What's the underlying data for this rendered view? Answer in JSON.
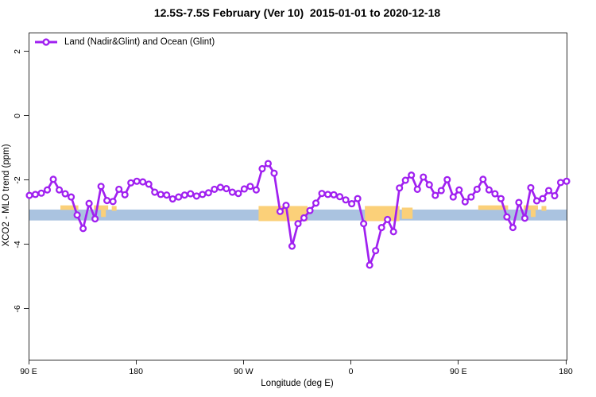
{
  "title": "12.5S-7.5S February (Ver 10)  2015-01-01 to 2020-12-18",
  "legend": {
    "label": "Land (Nadir&Glint) and Ocean (Glint)"
  },
  "colors": {
    "series_purple": "#A020F0",
    "ocean_band_blue": "#aac3e0",
    "land_patch_orange": "#fbd079",
    "axis_black": "#2b2b2b"
  },
  "chart_data": {
    "type": "line",
    "title": "12.5S-7.5S February (Ver 10)  2015-01-01 to 2020-12-18",
    "xlabel": "Longitude (deg E)",
    "ylabel": "XCO2 - MLO trend (ppm)",
    "x_axis_note": "longitude wraps: 90E to 180 to 90W to 0 to 90E to 180 (unwrapped 90..540)",
    "xlim": [
      90,
      540
    ],
    "ylim": [
      -7.56,
      2.59
    ],
    "grid": false,
    "legend_position": "top-left-inside",
    "x_ticks": [
      {
        "value": 90,
        "label": "90 E"
      },
      {
        "value": 180,
        "label": "180"
      },
      {
        "value": 270,
        "label": "90 W"
      },
      {
        "value": 360,
        "label": "0"
      },
      {
        "value": 450,
        "label": "90 E"
      },
      {
        "value": 540,
        "label": "180"
      }
    ],
    "y_ticks": [
      {
        "value": 2,
        "label": "2"
      },
      {
        "value": 0,
        "label": "0"
      },
      {
        "value": -2,
        "label": "-2"
      },
      {
        "value": -4,
        "label": "-4"
      },
      {
        "value": -6,
        "label": "-6"
      }
    ],
    "ocean_band": {
      "y_top": -2.89,
      "y_bottom": -3.23,
      "color": "#aac3e0"
    },
    "land_color": "#fbd079",
    "land_patches": [
      {
        "x1": 116,
        "x2": 131,
        "v1": -2.76,
        "v2": -2.9
      },
      {
        "x1": 144,
        "x2": 156,
        "v1": -2.76,
        "v2": -2.9
      },
      {
        "x1": 150,
        "x2": 154,
        "v1": -2.9,
        "v2": -3.12
      },
      {
        "x1": 159,
        "x2": 163,
        "v1": -2.78,
        "v2": -2.93
      },
      {
        "x1": 282,
        "x2": 323,
        "v1": -2.78,
        "v2": -3.25
      },
      {
        "x1": 371,
        "x2": 400,
        "v1": -2.78,
        "v2": -3.25
      },
      {
        "x1": 402,
        "x2": 411,
        "v1": -2.83,
        "v2": -3.18
      },
      {
        "x1": 466,
        "x2": 491,
        "v1": -2.76,
        "v2": -2.9
      },
      {
        "x1": 504,
        "x2": 516,
        "v1": -2.76,
        "v2": -2.9
      },
      {
        "x1": 510,
        "x2": 514,
        "v1": -2.9,
        "v2": -3.12
      },
      {
        "x1": 519,
        "x2": 523,
        "v1": -2.78,
        "v2": -2.93
      }
    ],
    "series": [
      {
        "name": "Land (Nadir&Glint) and Ocean (Glint)",
        "color": "#A020F0",
        "marker": "open-circle",
        "x": [
          90,
          95,
          100,
          105,
          110,
          115,
          120,
          125,
          130,
          135,
          140,
          145,
          150,
          155,
          160,
          165,
          170,
          175,
          180,
          185,
          190,
          195,
          200,
          205,
          210,
          215,
          220,
          225,
          230,
          235,
          240,
          245,
          250,
          255,
          260,
          265,
          270,
          275,
          280,
          285,
          290,
          295,
          300,
          305,
          310,
          315,
          320,
          325,
          330,
          335,
          340,
          345,
          350,
          355,
          360,
          365,
          370,
          375,
          380,
          385,
          390,
          395,
          400,
          405,
          410,
          415,
          420,
          425,
          430,
          435,
          440,
          445,
          450,
          455,
          460,
          465,
          470,
          475,
          480,
          485,
          490,
          495,
          500,
          505,
          510,
          515,
          520,
          525,
          530,
          535,
          540
        ],
        "y": [
          -2.45,
          -2.42,
          -2.38,
          -2.28,
          -1.95,
          -2.28,
          -2.4,
          -2.5,
          -3.06,
          -3.48,
          -2.7,
          -3.18,
          -2.17,
          -2.61,
          -2.64,
          -2.26,
          -2.43,
          -2.06,
          -2.01,
          -2.03,
          -2.1,
          -2.35,
          -2.42,
          -2.44,
          -2.56,
          -2.5,
          -2.44,
          -2.4,
          -2.47,
          -2.42,
          -2.37,
          -2.26,
          -2.2,
          -2.24,
          -2.35,
          -2.39,
          -2.25,
          -2.17,
          -2.28,
          -1.62,
          -1.46,
          -1.76,
          -2.95,
          -2.76,
          -4.03,
          -3.33,
          -3.15,
          -2.92,
          -2.69,
          -2.39,
          -2.42,
          -2.43,
          -2.49,
          -2.59,
          -2.71,
          -2.55,
          -3.33,
          -4.62,
          -4.17,
          -3.45,
          -3.2,
          -3.58,
          -2.22,
          -1.98,
          -1.82,
          -2.26,
          -1.88,
          -2.12,
          -2.45,
          -2.3,
          -1.96,
          -2.5,
          -2.28,
          -2.65,
          -2.5,
          -2.26,
          -1.95,
          -2.28,
          -2.4,
          -2.55,
          -3.12,
          -3.45,
          -2.67,
          -3.16,
          -2.21,
          -2.62,
          -2.55,
          -2.3,
          -2.46,
          -2.05,
          -2.01
        ]
      }
    ]
  }
}
